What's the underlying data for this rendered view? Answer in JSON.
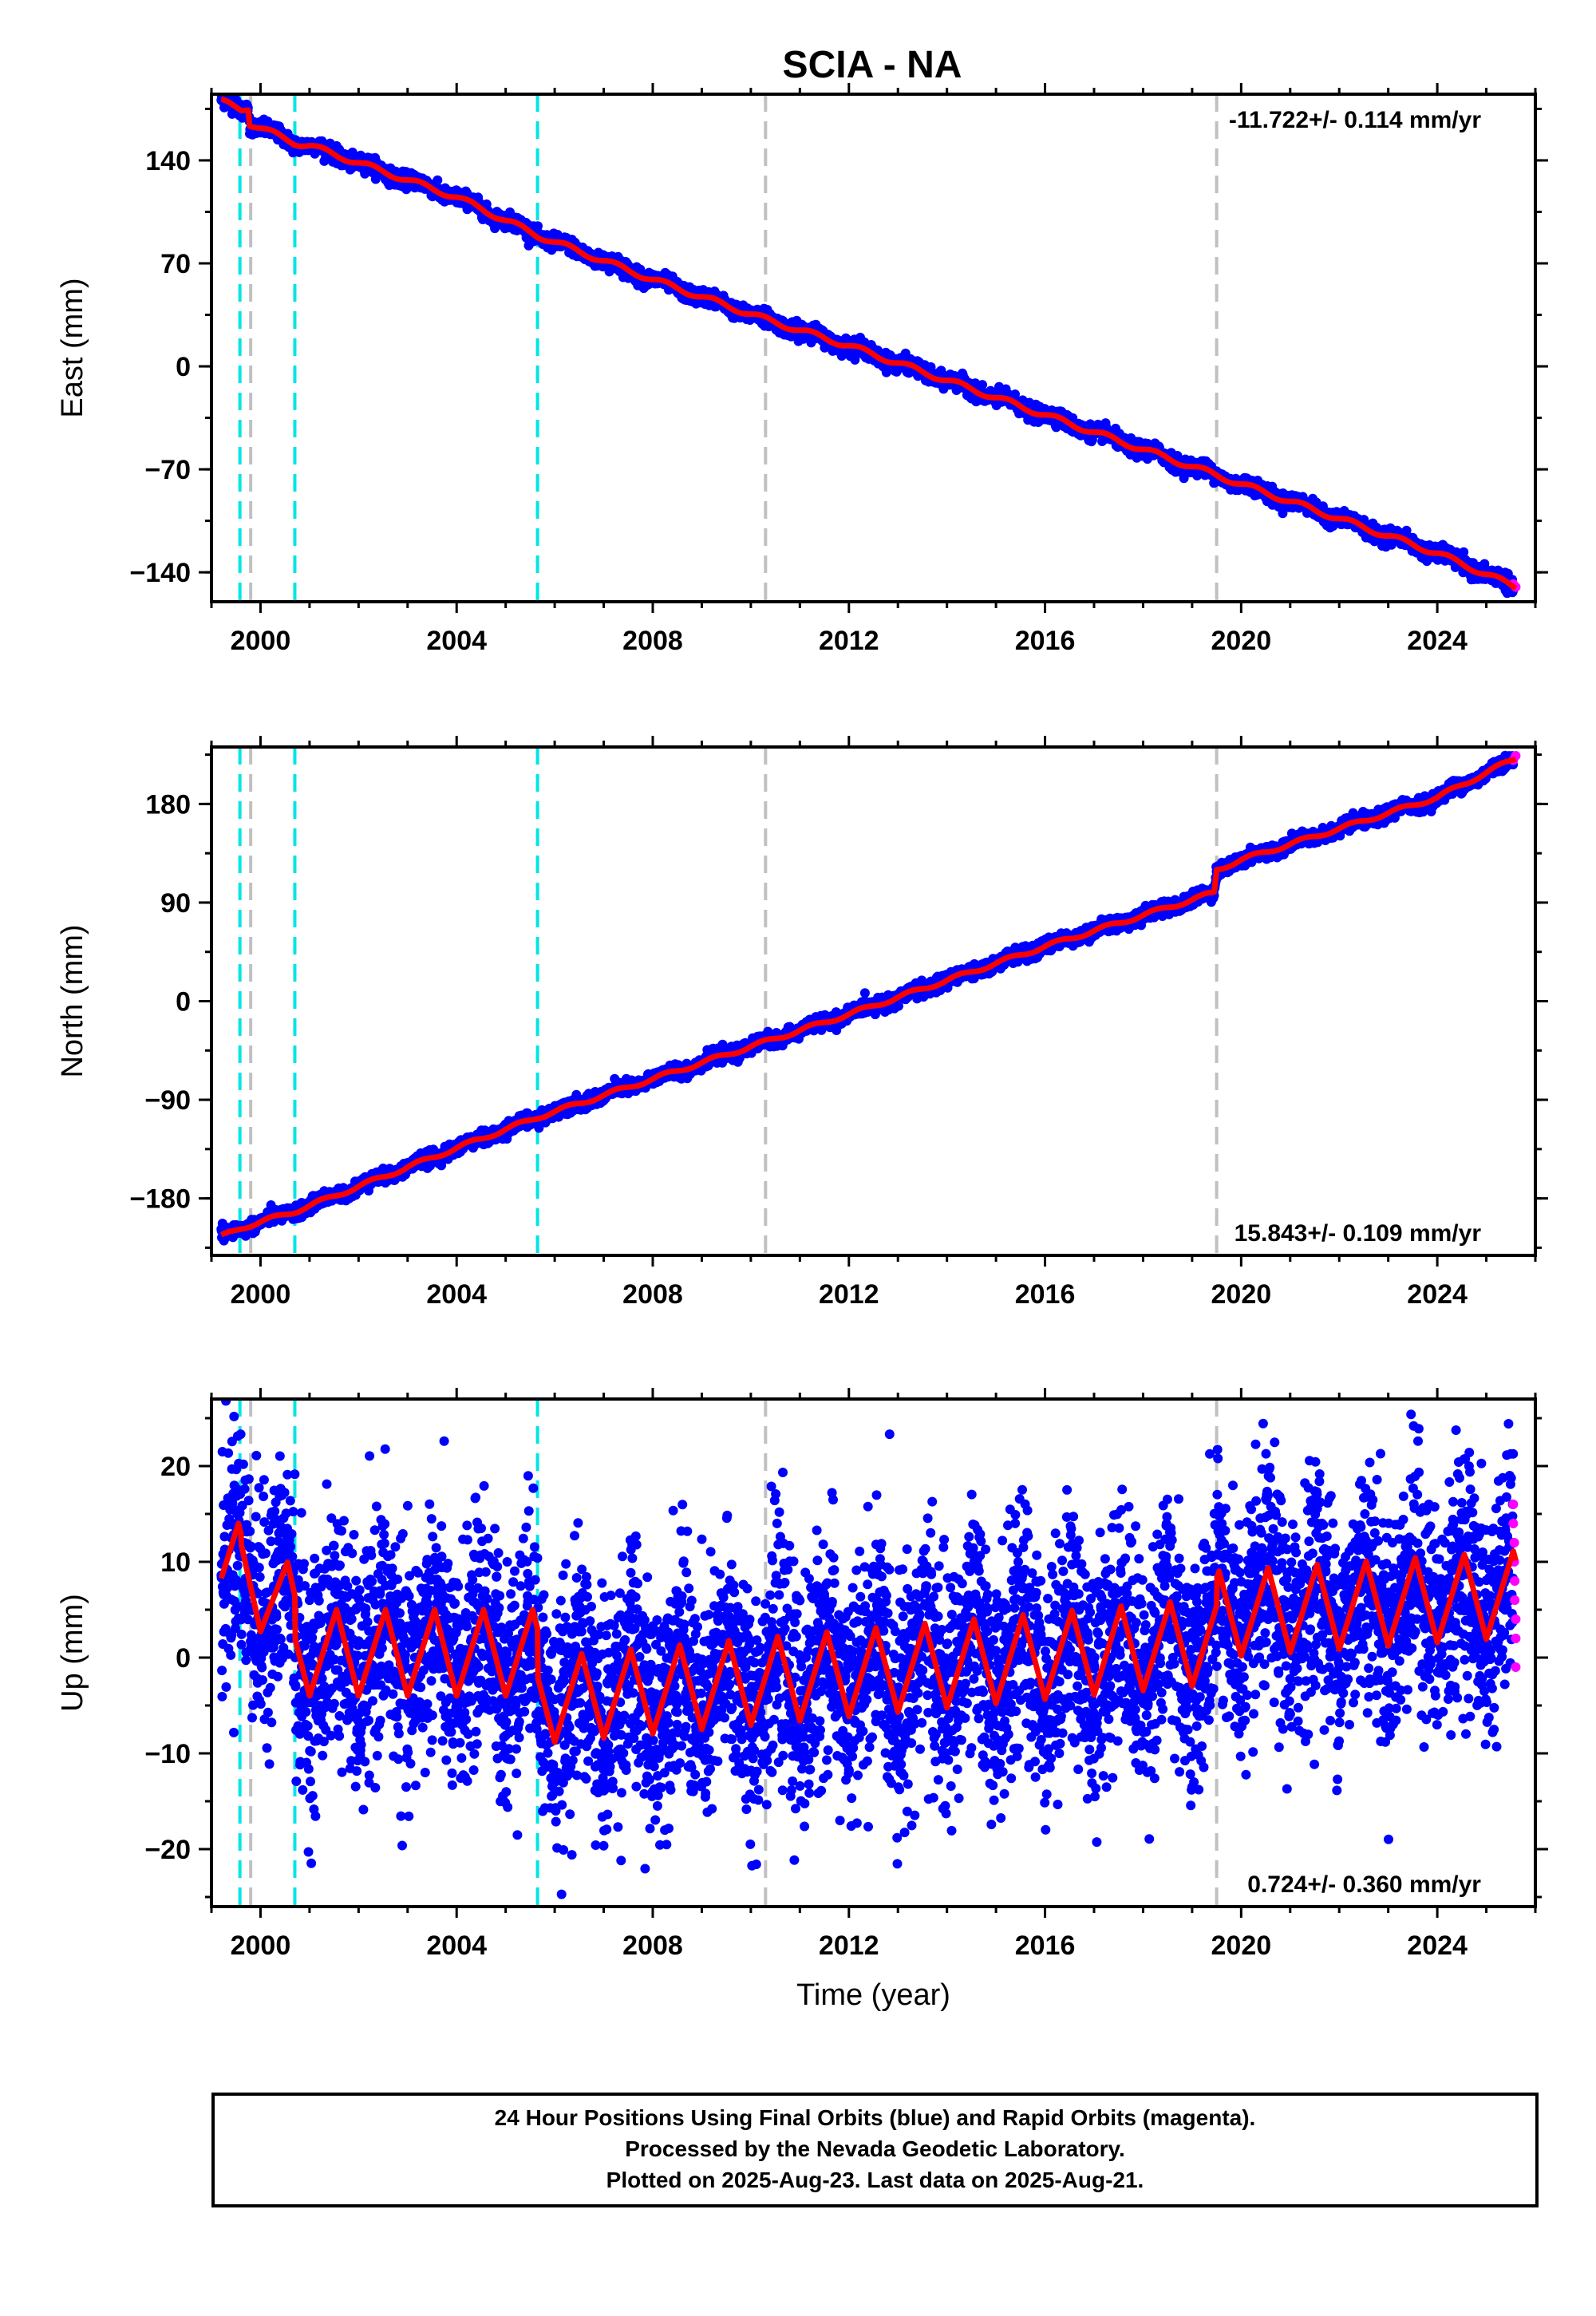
{
  "title": "SCIA - NA",
  "footer": {
    "line1": "24 Hour Positions Using Final Orbits (blue) and Rapid Orbits (magenta).",
    "line2": "Processed by the Nevada Geodetic Laboratory.",
    "line3": "Plotted on 2025-Aug-23. Last data on 2025-Aug-21."
  },
  "colors": {
    "final_orbits": "#0000ff",
    "rapid_orbits": "#ff00ff",
    "model_fit": "#ff0000",
    "equipment_change_lines": "#00e5e5",
    "other_event_lines": "#c0c0c0"
  },
  "chart_data": [
    {
      "type": "scatter",
      "panel": "east",
      "ylabel": "East (mm)",
      "xlim": [
        1999.0,
        2026.0
      ],
      "ylim": [
        -160,
        185
      ],
      "x_ticks": [
        2000,
        2004,
        2008,
        2012,
        2016,
        2020,
        2024
      ],
      "y_ticks": [
        140,
        70,
        0,
        -70,
        -140
      ],
      "rate_label": "-11.722+/- 0.114 mm/yr",
      "rate_label_position": "top-right",
      "trend_points": [
        [
          1999.2,
          180
        ],
        [
          1999.6,
          175
        ],
        [
          1999.75,
          176
        ],
        [
          1999.78,
          165
        ],
        [
          2000.7,
          152
        ],
        [
          2001.0,
          150
        ],
        [
          2004.0,
          115
        ],
        [
          2005.65,
          89
        ],
        [
          2008.0,
          59
        ],
        [
          2010.3,
          32
        ],
        [
          2012.0,
          14
        ],
        [
          2016.0,
          -33
        ],
        [
          2019.5,
          -74
        ],
        [
          2020.0,
          -80
        ],
        [
          2024.0,
          -127
        ],
        [
          2025.6,
          -150
        ]
      ],
      "rapid_points": [
        [
          2025.55,
          -148
        ],
        [
          2025.6,
          -150
        ]
      ],
      "scatter_mm": 2.5
    },
    {
      "type": "scatter",
      "panel": "north",
      "ylabel": "North (mm)",
      "xlim": [
        1999.0,
        2026.0
      ],
      "ylim": [
        -232,
        232
      ],
      "x_ticks": [
        2000,
        2004,
        2008,
        2012,
        2016,
        2020,
        2024
      ],
      "y_ticks": [
        180,
        90,
        0,
        -90,
        -180
      ],
      "rate_label": "15.843+/- 0.109 mm/yr",
      "rate_label_position": "bottom-right",
      "trend_points": [
        [
          1999.2,
          -215
        ],
        [
          1999.6,
          -207
        ],
        [
          2000.7,
          -192
        ],
        [
          2004.0,
          -134
        ],
        [
          2005.65,
          -106
        ],
        [
          2008.0,
          -71
        ],
        [
          2010.3,
          -37
        ],
        [
          2012.0,
          -12
        ],
        [
          2016.0,
          50
        ],
        [
          2019.45,
          99
        ],
        [
          2019.5,
          120
        ],
        [
          2020.0,
          129
        ],
        [
          2024.0,
          186
        ],
        [
          2025.6,
          222
        ]
      ],
      "rapid_points": [
        [
          2025.55,
          220
        ],
        [
          2025.6,
          224
        ]
      ],
      "scatter_mm": 3
    },
    {
      "type": "scatter",
      "panel": "up",
      "ylabel": "Up (mm)",
      "xlabel": "Time (year)",
      "xlim": [
        1999.0,
        2026.0
      ],
      "ylim": [
        -26,
        27
      ],
      "x_ticks": [
        2000,
        2004,
        2008,
        2012,
        2016,
        2020,
        2024
      ],
      "y_ticks": [
        20,
        10,
        0,
        -10,
        -20
      ],
      "rate_label": "0.724+/- 0.360 mm/yr",
      "rate_label_position": "bottom-right",
      "seasonal_fit": {
        "segments": [
          {
            "start": 1999.2,
            "end": 1999.6,
            "offset": 9.5,
            "slope": 0
          },
          {
            "start": 1999.6,
            "end": 2000.7,
            "offset": 8.5,
            "slope": -3.2
          },
          {
            "start": 2000.7,
            "end": 2005.65,
            "offset": 0.5,
            "slope": 0
          },
          {
            "start": 2005.65,
            "end": 2019.5,
            "offset": -4.5,
            "slope": 0.45
          },
          {
            "start": 2019.5,
            "end": 2025.6,
            "offset": 4.5,
            "slope": 0.35
          }
        ],
        "amplitude": 4.5
      },
      "rapid_points": [
        [
          2025.55,
          16
        ],
        [
          2025.55,
          14
        ],
        [
          2025.57,
          12
        ],
        [
          2025.57,
          10
        ],
        [
          2025.58,
          8
        ],
        [
          2025.58,
          6
        ],
        [
          2025.6,
          4
        ],
        [
          2025.6,
          2
        ],
        [
          2025.6,
          -1
        ]
      ],
      "scatter_mm": 6
    }
  ],
  "event_lines": {
    "cyan": [
      1999.58,
      2000.7,
      2005.65
    ],
    "gray": [
      1999.8,
      2010.3,
      2019.5
    ]
  }
}
